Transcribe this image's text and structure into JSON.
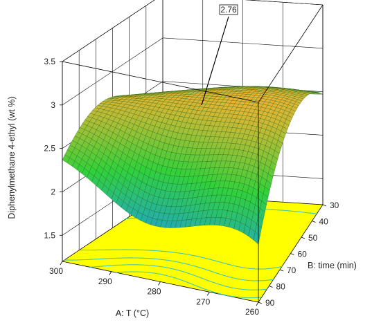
{
  "chart_data": {
    "type": "surface3d",
    "title": "",
    "xlabel": "A: T (°C)",
    "ylabel": "B: time (min)",
    "zlabel": "Diphenylmethane 4-ethyl (wt %)",
    "x_ticks": [
      "260",
      "270",
      "280",
      "290",
      "300"
    ],
    "y_ticks": [
      "30",
      "40",
      "50",
      "60",
      "70",
      "80",
      "90"
    ],
    "z_ticks": [
      "1.5",
      "2",
      "2.5",
      "3",
      "3.5"
    ],
    "xlim": [
      260,
      300
    ],
    "ylim": [
      30,
      90
    ],
    "zlim": [
      1.2,
      3.5
    ],
    "grid": true,
    "contour_floor": true,
    "contour_color": "#3fc7b7",
    "floor_color": "#ffff00",
    "marker": {
      "label": "2.76",
      "x": 280,
      "y": 60,
      "z": 2.76
    },
    "surface": {
      "description": "predicted response surface sampled on a 41×41 grid from a quadratic-type model",
      "x_range": [
        260,
        300
      ],
      "y_range": [
        30,
        90
      ],
      "samples_per_axis": 41
    },
    "colors": {
      "low": "#1fa0d8",
      "mid": "#31d13a",
      "high": "#f3b232",
      "edge": "#145a1a",
      "frame": "#000000"
    }
  }
}
